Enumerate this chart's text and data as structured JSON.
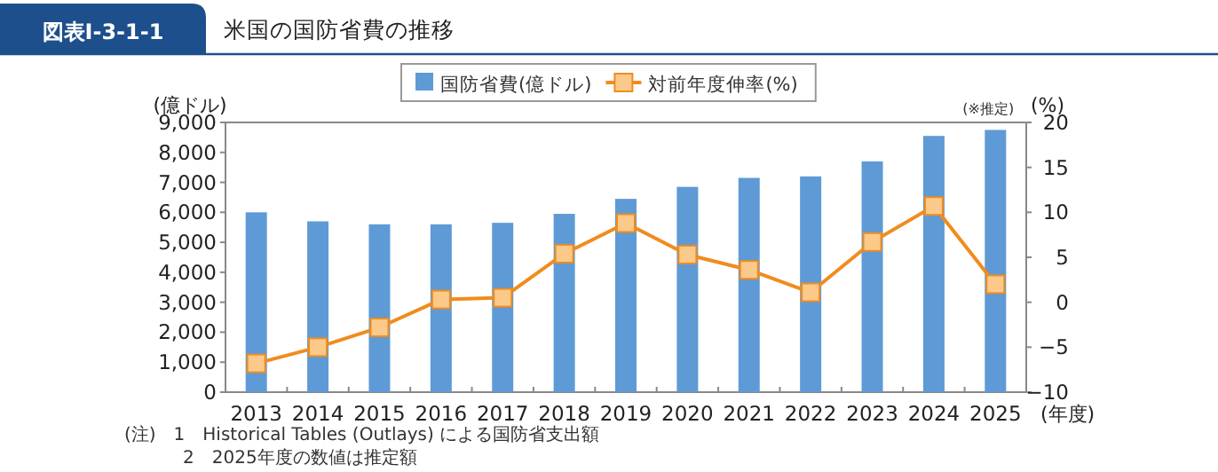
{
  "chart_data": {
    "type": "bar",
    "title": "米国の国防省費の推移",
    "subtitle": "図表Ⅰ-3-1-1",
    "ylabel": "(億ドル)",
    "y2label": "(%)",
    "xlabel": "(年度)",
    "categories": [
      "2013",
      "2014",
      "2015",
      "2016",
      "2017",
      "2018",
      "2019",
      "2020",
      "2021",
      "2022",
      "2023",
      "2024",
      "2025"
    ],
    "series": [
      {
        "name": "国防省費(億ドル)",
        "color": "#5e9ad6",
        "values": [
          6000,
          5700,
          5600,
          5600,
          5650,
          5950,
          6450,
          6850,
          7150,
          7200,
          7700,
          8550,
          8750
        ]
      },
      {
        "name": "対前年度伸率(%)",
        "type": "line",
        "axis": "y2",
        "color": "#f08c1e",
        "marker": "square",
        "values": [
          -6.8,
          -5.0,
          -2.8,
          0.3,
          0.5,
          5.4,
          8.8,
          5.3,
          3.6,
          1.1,
          6.7,
          10.7,
          2.0
        ]
      }
    ],
    "ylim": [
      0,
      9000
    ],
    "yticks": [
      {
        "value": 0,
        "label": "0"
      },
      {
        "value": 1000,
        "label": "1,000"
      },
      {
        "value": 2000,
        "label": "2,000"
      },
      {
        "value": 3000,
        "label": "3,000"
      },
      {
        "value": 4000,
        "label": "4,000"
      },
      {
        "value": 5000,
        "label": "5,000"
      },
      {
        "value": 6000,
        "label": "6,000"
      },
      {
        "value": 7000,
        "label": "7,000"
      },
      {
        "value": 8000,
        "label": "8,000"
      },
      {
        "value": 9000,
        "label": "9,000"
      }
    ],
    "y2lim": [
      -10,
      20
    ],
    "y2ticks": [
      {
        "value": -10,
        "label": "−10"
      },
      {
        "value": -5,
        "label": "−5"
      },
      0,
      5,
      10,
      15,
      20
    ],
    "legend": "top",
    "annotations": [
      {
        "text": "(※推定)",
        "x": "2025",
        "y": 8750
      },
      "(注)　1　Historical Tables (Outlays) による国防省支出額",
      "2　2025年度の数値は推定額"
    ]
  }
}
